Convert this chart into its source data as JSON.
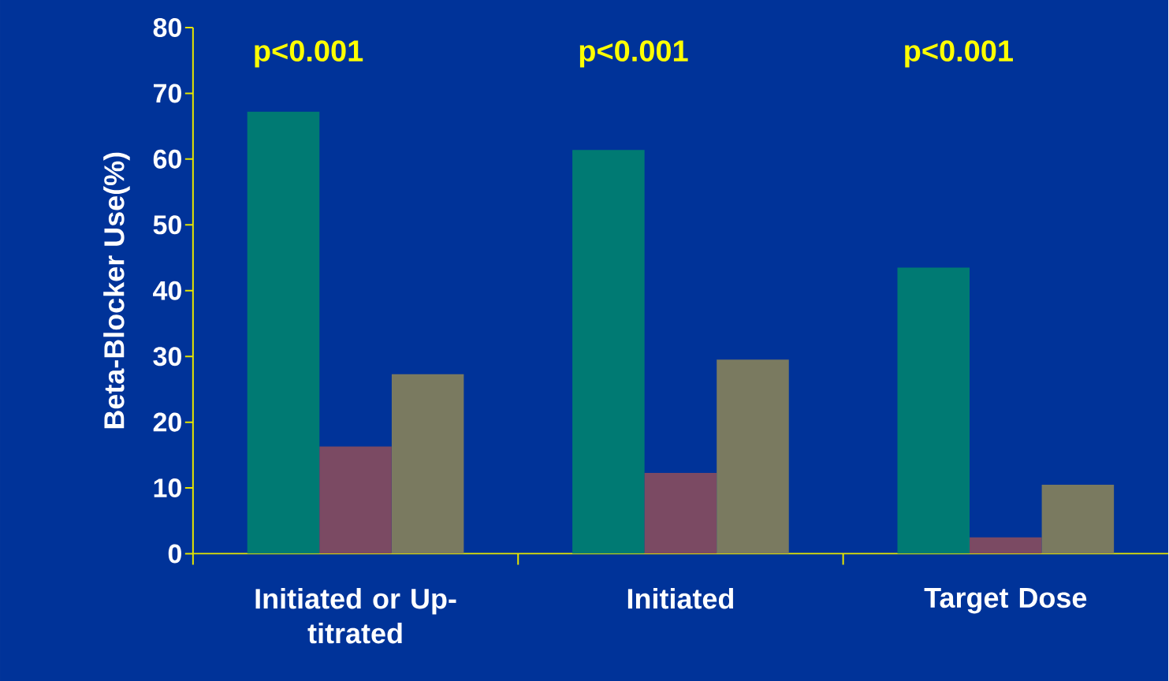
{
  "chart_data": {
    "type": "bar",
    "ylabel": "Beta-Blocker Use(%)",
    "categories": [
      "Initiated or Up-titrated",
      "Initiated",
      "Target Dose"
    ],
    "series": [
      {
        "color": "#007a73",
        "values": [
          67.2,
          61.4,
          43.5
        ]
      },
      {
        "color": "#7b4a63",
        "values": [
          16.3,
          12.3,
          2.5
        ]
      },
      {
        "color": "#7a7a60",
        "values": [
          27.3,
          29.5,
          10.5
        ]
      }
    ],
    "ylim": [
      0,
      80
    ],
    "yticks": [
      0,
      10,
      20,
      30,
      40,
      50,
      60,
      70,
      80
    ],
    "grid": false,
    "annotations": [
      "p<0.001",
      "p<0.001",
      "p<0.001"
    ]
  }
}
